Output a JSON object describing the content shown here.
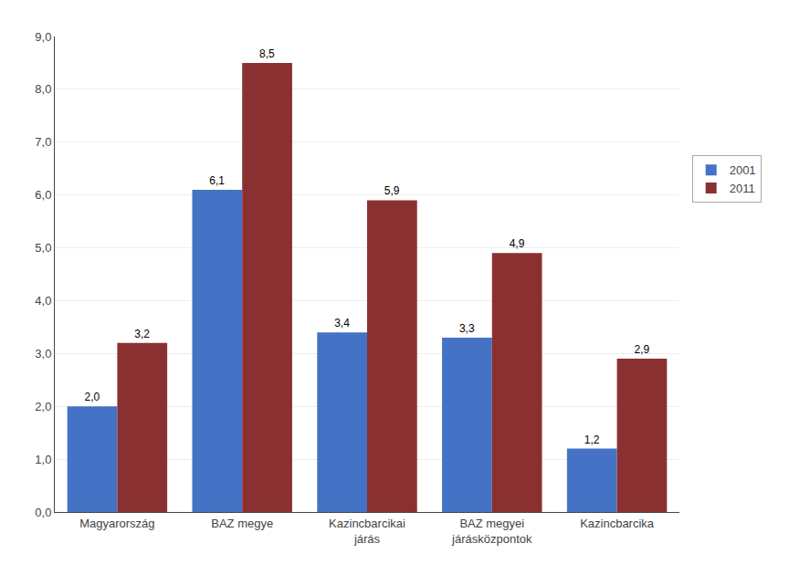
{
  "chart_data": {
    "type": "bar",
    "categories": [
      "Magyarország",
      "BAZ megye",
      "Kazincbarcikai\njárás",
      "BAZ megyei\njárásközpontok",
      "Kazincbarcika"
    ],
    "series": [
      {
        "name": "2001",
        "color": "#4472C4",
        "values": [
          2.0,
          6.1,
          3.4,
          3.3,
          1.2
        ],
        "value_labels": [
          "2,0",
          "6,1",
          "3,4",
          "3,3",
          "1,2"
        ]
      },
      {
        "name": "2011",
        "color": "#8B3030",
        "values": [
          3.2,
          8.5,
          5.9,
          4.9,
          2.9
        ],
        "value_labels": [
          "3,2",
          "8,5",
          "5,9",
          "4,9",
          "2,9"
        ]
      }
    ],
    "ylim": [
      0,
      9.0
    ],
    "yticks": [
      {
        "value": 0.0,
        "label": "0,0"
      },
      {
        "value": 1.0,
        "label": "1,0"
      },
      {
        "value": 2.0,
        "label": "2,0"
      },
      {
        "value": 3.0,
        "label": "3,0"
      },
      {
        "value": 4.0,
        "label": "4,0"
      },
      {
        "value": 5.0,
        "label": "5,0"
      },
      {
        "value": 6.0,
        "label": "6,0"
      },
      {
        "value": 7.0,
        "label": "7,0"
      },
      {
        "value": 8.0,
        "label": "8,0"
      },
      {
        "value": 9.0,
        "label": "9,0"
      }
    ],
    "grid": true,
    "legend": "right",
    "data_labels": true
  }
}
